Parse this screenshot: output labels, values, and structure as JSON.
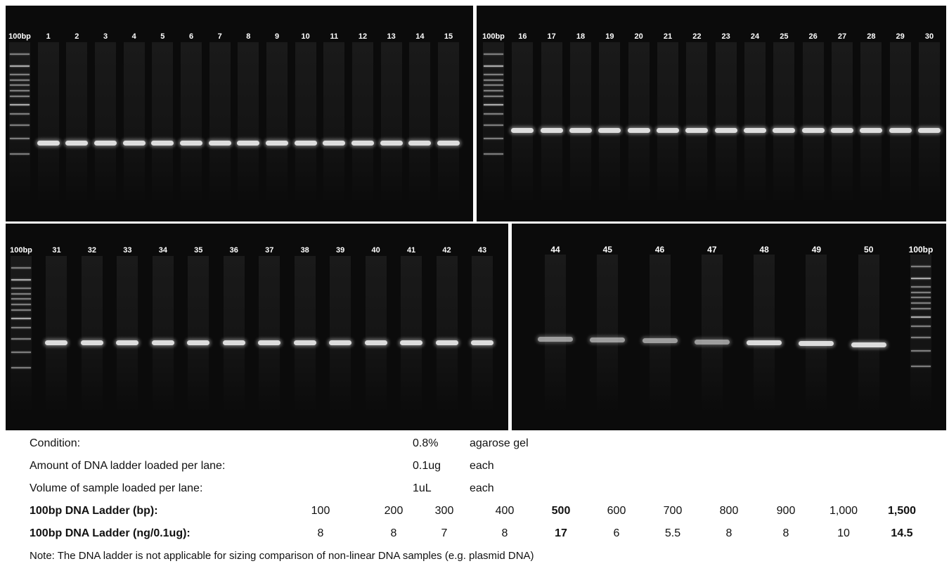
{
  "panels": [
    {
      "lanes": [
        "100bp",
        "1",
        "2",
        "3",
        "4",
        "5",
        "6",
        "7",
        "8",
        "9",
        "10",
        "11",
        "12",
        "13",
        "14",
        "15"
      ]
    },
    {
      "lanes": [
        "100bp",
        "16",
        "17",
        "18",
        "19",
        "20",
        "21",
        "22",
        "23",
        "24",
        "25",
        "26",
        "27",
        "28",
        "29",
        "30"
      ]
    },
    {
      "lanes": [
        "100bp",
        "31",
        "32",
        "33",
        "34",
        "35",
        "36",
        "37",
        "38",
        "39",
        "40",
        "41",
        "42",
        "43"
      ]
    },
    {
      "lanes": [
        "44",
        "45",
        "46",
        "47",
        "48",
        "49",
        "50",
        "100bp"
      ]
    }
  ],
  "conditions": [
    {
      "label": "Condition:",
      "value": "0.8%",
      "unit": "agarose gel"
    },
    {
      "label": "Amount of DNA ladder loaded per lane:",
      "value": "0.1ug",
      "unit": "each"
    },
    {
      "label": "Volume of sample loaded per lane:",
      "value": "1uL",
      "unit": "each"
    }
  ],
  "ladder_rows": [
    {
      "label": "100bp DNA Ladder (bp):",
      "values": [
        "100",
        "200",
        "300",
        "400",
        "500",
        "600",
        "700",
        "800",
        "900",
        "1,000",
        "1,500"
      ]
    },
    {
      "label": "100bp DNA Ladder (ng/0.1ug):",
      "values": [
        "8",
        "8",
        "7",
        "8",
        "17",
        "6",
        "5.5",
        "8",
        "8",
        "10",
        "14.5"
      ]
    }
  ],
  "note": "Note: The DNA ladder is not applicable for sizing comparison of non-linear DNA samples (e.g. plasmid DNA)"
}
